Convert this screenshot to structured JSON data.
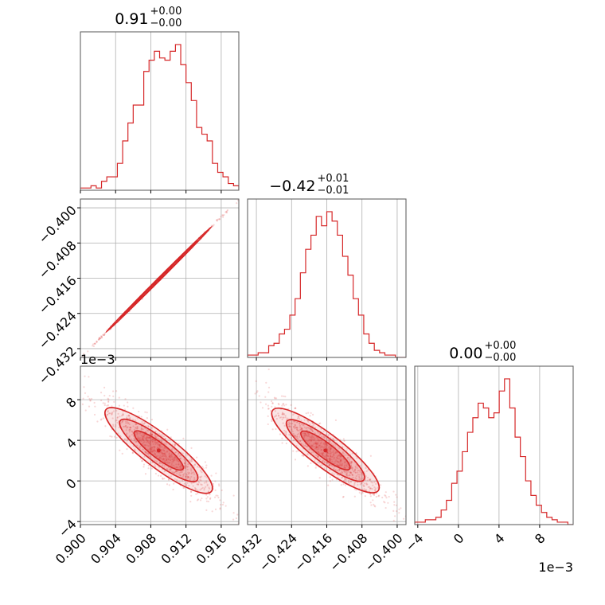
{
  "chart_data": {
    "type": "corner",
    "color": "#d62728",
    "parameters": [
      {
        "title": {
          "value": "0.91",
          "plus": "+0.00",
          "minus": "−0.00"
        },
        "range": [
          0.9,
          0.918
        ],
        "ticks": [
          0.9,
          0.904,
          0.908,
          0.912,
          0.916
        ],
        "tick_labels": [
          "0.900",
          "0.904",
          "0.908",
          "0.912",
          "0.916"
        ],
        "offset_label": ""
      },
      {
        "title": {
          "value": "−0.42",
          "plus": "+0.01",
          "minus": "−0.01"
        },
        "range": [
          -0.434,
          -0.398
        ],
        "ticks": [
          -0.432,
          -0.424,
          -0.416,
          -0.408,
          -0.4
        ],
        "tick_labels": [
          "−0.432",
          "−0.424",
          "−0.416",
          "−0.408",
          "−0.400"
        ],
        "offset_label": ""
      },
      {
        "title": {
          "value": "0.00",
          "plus": "+0.00",
          "minus": "−0.00"
        },
        "range": [
          -0.0043,
          0.0113
        ],
        "ticks": [
          -0.004,
          0.0,
          0.004,
          0.008
        ],
        "tick_labels": [
          "−4",
          "0",
          "4",
          "8"
        ],
        "offset_label": "1e−3"
      }
    ],
    "histograms": [
      {
        "param": 0,
        "edges_start": 0.9,
        "edges_step": 0.0006,
        "counts": [
          1,
          1,
          2,
          1,
          4,
          6,
          6,
          12,
          22,
          30,
          38,
          38,
          53,
          58,
          62,
          59,
          58,
          62,
          65,
          56,
          48,
          40,
          28,
          25,
          22,
          12,
          8,
          6,
          3,
          2
        ]
      },
      {
        "param": 1,
        "edges_start": -0.434,
        "edges_step": 0.0012,
        "counts": [
          1,
          1,
          2,
          2,
          5,
          6,
          10,
          12,
          18,
          25,
          36,
          46,
          52,
          60,
          56,
          62,
          58,
          52,
          43,
          35,
          25,
          18,
          10,
          6,
          3,
          2,
          1,
          1,
          0,
          0
        ]
      },
      {
        "param": 2,
        "edges_start": -0.0043,
        "edges_step": 0.00052,
        "counts": [
          1,
          1,
          2,
          2,
          3,
          6,
          10,
          17,
          22,
          30,
          38,
          44,
          50,
          48,
          44,
          46,
          55,
          60,
          48,
          36,
          28,
          18,
          12,
          8,
          5,
          3,
          2,
          1,
          1,
          0
        ]
      }
    ],
    "pairs": [
      {
        "x_param": 0,
        "y_param": 1,
        "center": [
          0.9089,
          -0.4163
        ],
        "slope": 2.0,
        "spread": [
          0.0025,
          0.00012
        ]
      },
      {
        "x_param": 0,
        "y_param": 2,
        "center": [
          0.9089,
          0.003
        ],
        "slope": -0.67,
        "spread": [
          0.0025,
          0.00075
        ]
      },
      {
        "x_param": 1,
        "y_param": 2,
        "center": [
          -0.4163,
          0.003
        ],
        "slope": -0.33,
        "spread": [
          0.005,
          0.00075
        ]
      }
    ],
    "contour_levels": [
      0.5,
      0.86,
      0.98
    ],
    "grid": true
  }
}
